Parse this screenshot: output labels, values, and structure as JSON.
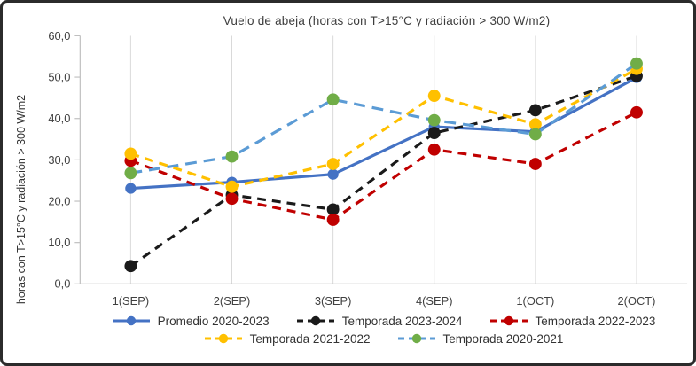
{
  "frame": {
    "background": "#ffffff",
    "border_color": "#2b2b2b"
  },
  "chart_data": {
    "type": "line",
    "title": "Vuelo de abeja (horas con T>15°C y radiación > 300 W/m2)",
    "ylabel": "horas con T>15°C y radiación > 300 W/m2",
    "xlabel": "",
    "categories": [
      "1(SEP)",
      "2(SEP)",
      "3(SEP)",
      "4(SEP)",
      "1(OCT)",
      "2(OCT)"
    ],
    "ylim": [
      0,
      60
    ],
    "ytick_step": 10,
    "ytick_labels": [
      "0,0",
      "10,0",
      "20,0",
      "30,0",
      "40,0",
      "50,0",
      "60,0"
    ],
    "grid": "vertical category gridlines only",
    "legend_position": "bottom, two rows",
    "axis_color": "#bfbfbf",
    "gridline_color": "#d9d9d9",
    "tick_text_color": "#404040",
    "series": [
      {
        "name": "Promedio 2020-2023",
        "color": "#4472c4",
        "marker": "#4472c4",
        "style": "solid",
        "values": [
          23.1,
          24.6,
          26.5,
          38.0,
          36.8,
          49.9
        ]
      },
      {
        "name": "Temporada 2023-2024",
        "color": "#1a1a1a",
        "marker": "#1a1a1a",
        "style": "dashed",
        "values": [
          4.3,
          21.5,
          18.0,
          36.5,
          42.0,
          50.3
        ]
      },
      {
        "name": "Temporada 2022-2023",
        "color": "#c00000",
        "marker": "#c00000",
        "style": "dashed",
        "values": [
          29.8,
          20.6,
          15.5,
          32.5,
          29.0,
          41.5
        ]
      },
      {
        "name": "Temporada 2021-2022",
        "color": "#ffc000",
        "marker": "#ffc000",
        "style": "dashed",
        "values": [
          31.5,
          23.5,
          29.0,
          45.5,
          38.6,
          52.0
        ]
      },
      {
        "name": "Temporada 2020-2021",
        "color": "#5b9bd5",
        "marker": "#70ad47",
        "style": "dashed",
        "values": [
          26.8,
          30.8,
          44.6,
          39.6,
          36.2,
          53.3
        ]
      }
    ]
  }
}
